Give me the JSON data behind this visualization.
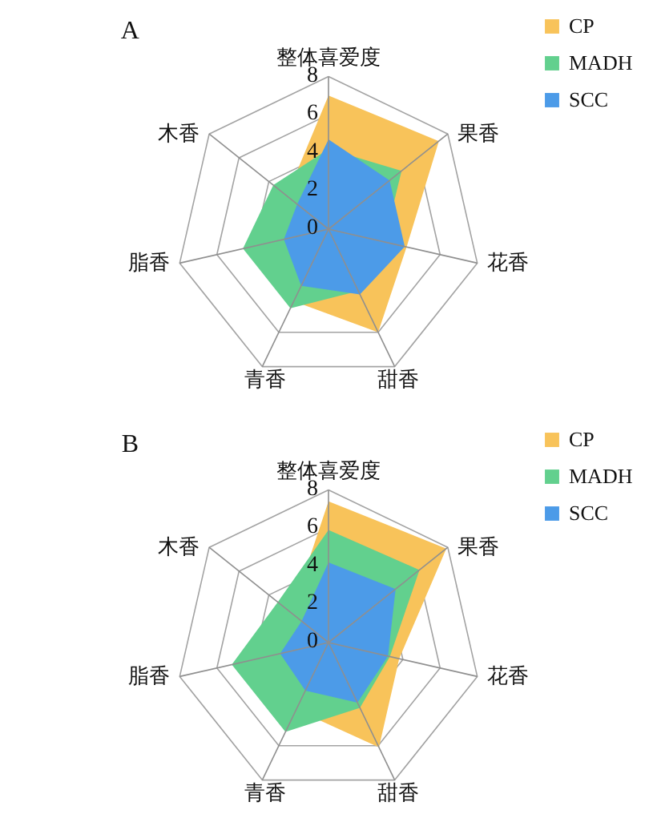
{
  "chart_data": [
    {
      "type": "radar",
      "title": "A",
      "categories": [
        "整体喜爱度",
        "果香",
        "花香",
        "甜香",
        "青香",
        "脂香",
        "木香"
      ],
      "series": [
        {
          "name": "CP",
          "color": "#f8c35a",
          "values": [
            7.0,
            7.4,
            4.2,
            6.0,
            4.2,
            4.5,
            2.8
          ]
        },
        {
          "name": "MADH",
          "color": "#62d08e",
          "values": [
            4.2,
            4.9,
            3.0,
            3.6,
            4.6,
            4.6,
            3.7
          ]
        },
        {
          "name": "SCC",
          "color": "#4c9be8",
          "values": [
            4.7,
            4.1,
            4.1,
            3.8,
            3.3,
            2.4,
            2.1
          ]
        }
      ],
      "ylim": [
        0,
        8
      ],
      "yticks": [
        0,
        2,
        4,
        6,
        8
      ],
      "grid": true,
      "legend": "top right"
    },
    {
      "type": "radar",
      "title": "B",
      "categories": [
        "整体喜爱度",
        "果香",
        "花香",
        "甜香",
        "青香",
        "脂香",
        "木香"
      ],
      "series": [
        {
          "name": "CP",
          "color": "#f8c35a",
          "values": [
            7.4,
            7.9,
            3.8,
            6.1,
            3.9,
            4.0,
            2.5
          ]
        },
        {
          "name": "MADH",
          "color": "#62d08e",
          "values": [
            5.9,
            6.1,
            3.3,
            3.8,
            5.2,
            5.2,
            3.4
          ]
        },
        {
          "name": "SCC",
          "color": "#4c9be8",
          "values": [
            4.2,
            4.5,
            3.2,
            3.5,
            2.8,
            2.6,
            1.8
          ]
        }
      ],
      "ylim": [
        0,
        8
      ],
      "yticks": [
        0,
        2,
        4,
        6,
        8
      ],
      "grid": true,
      "legend": "top right"
    }
  ]
}
